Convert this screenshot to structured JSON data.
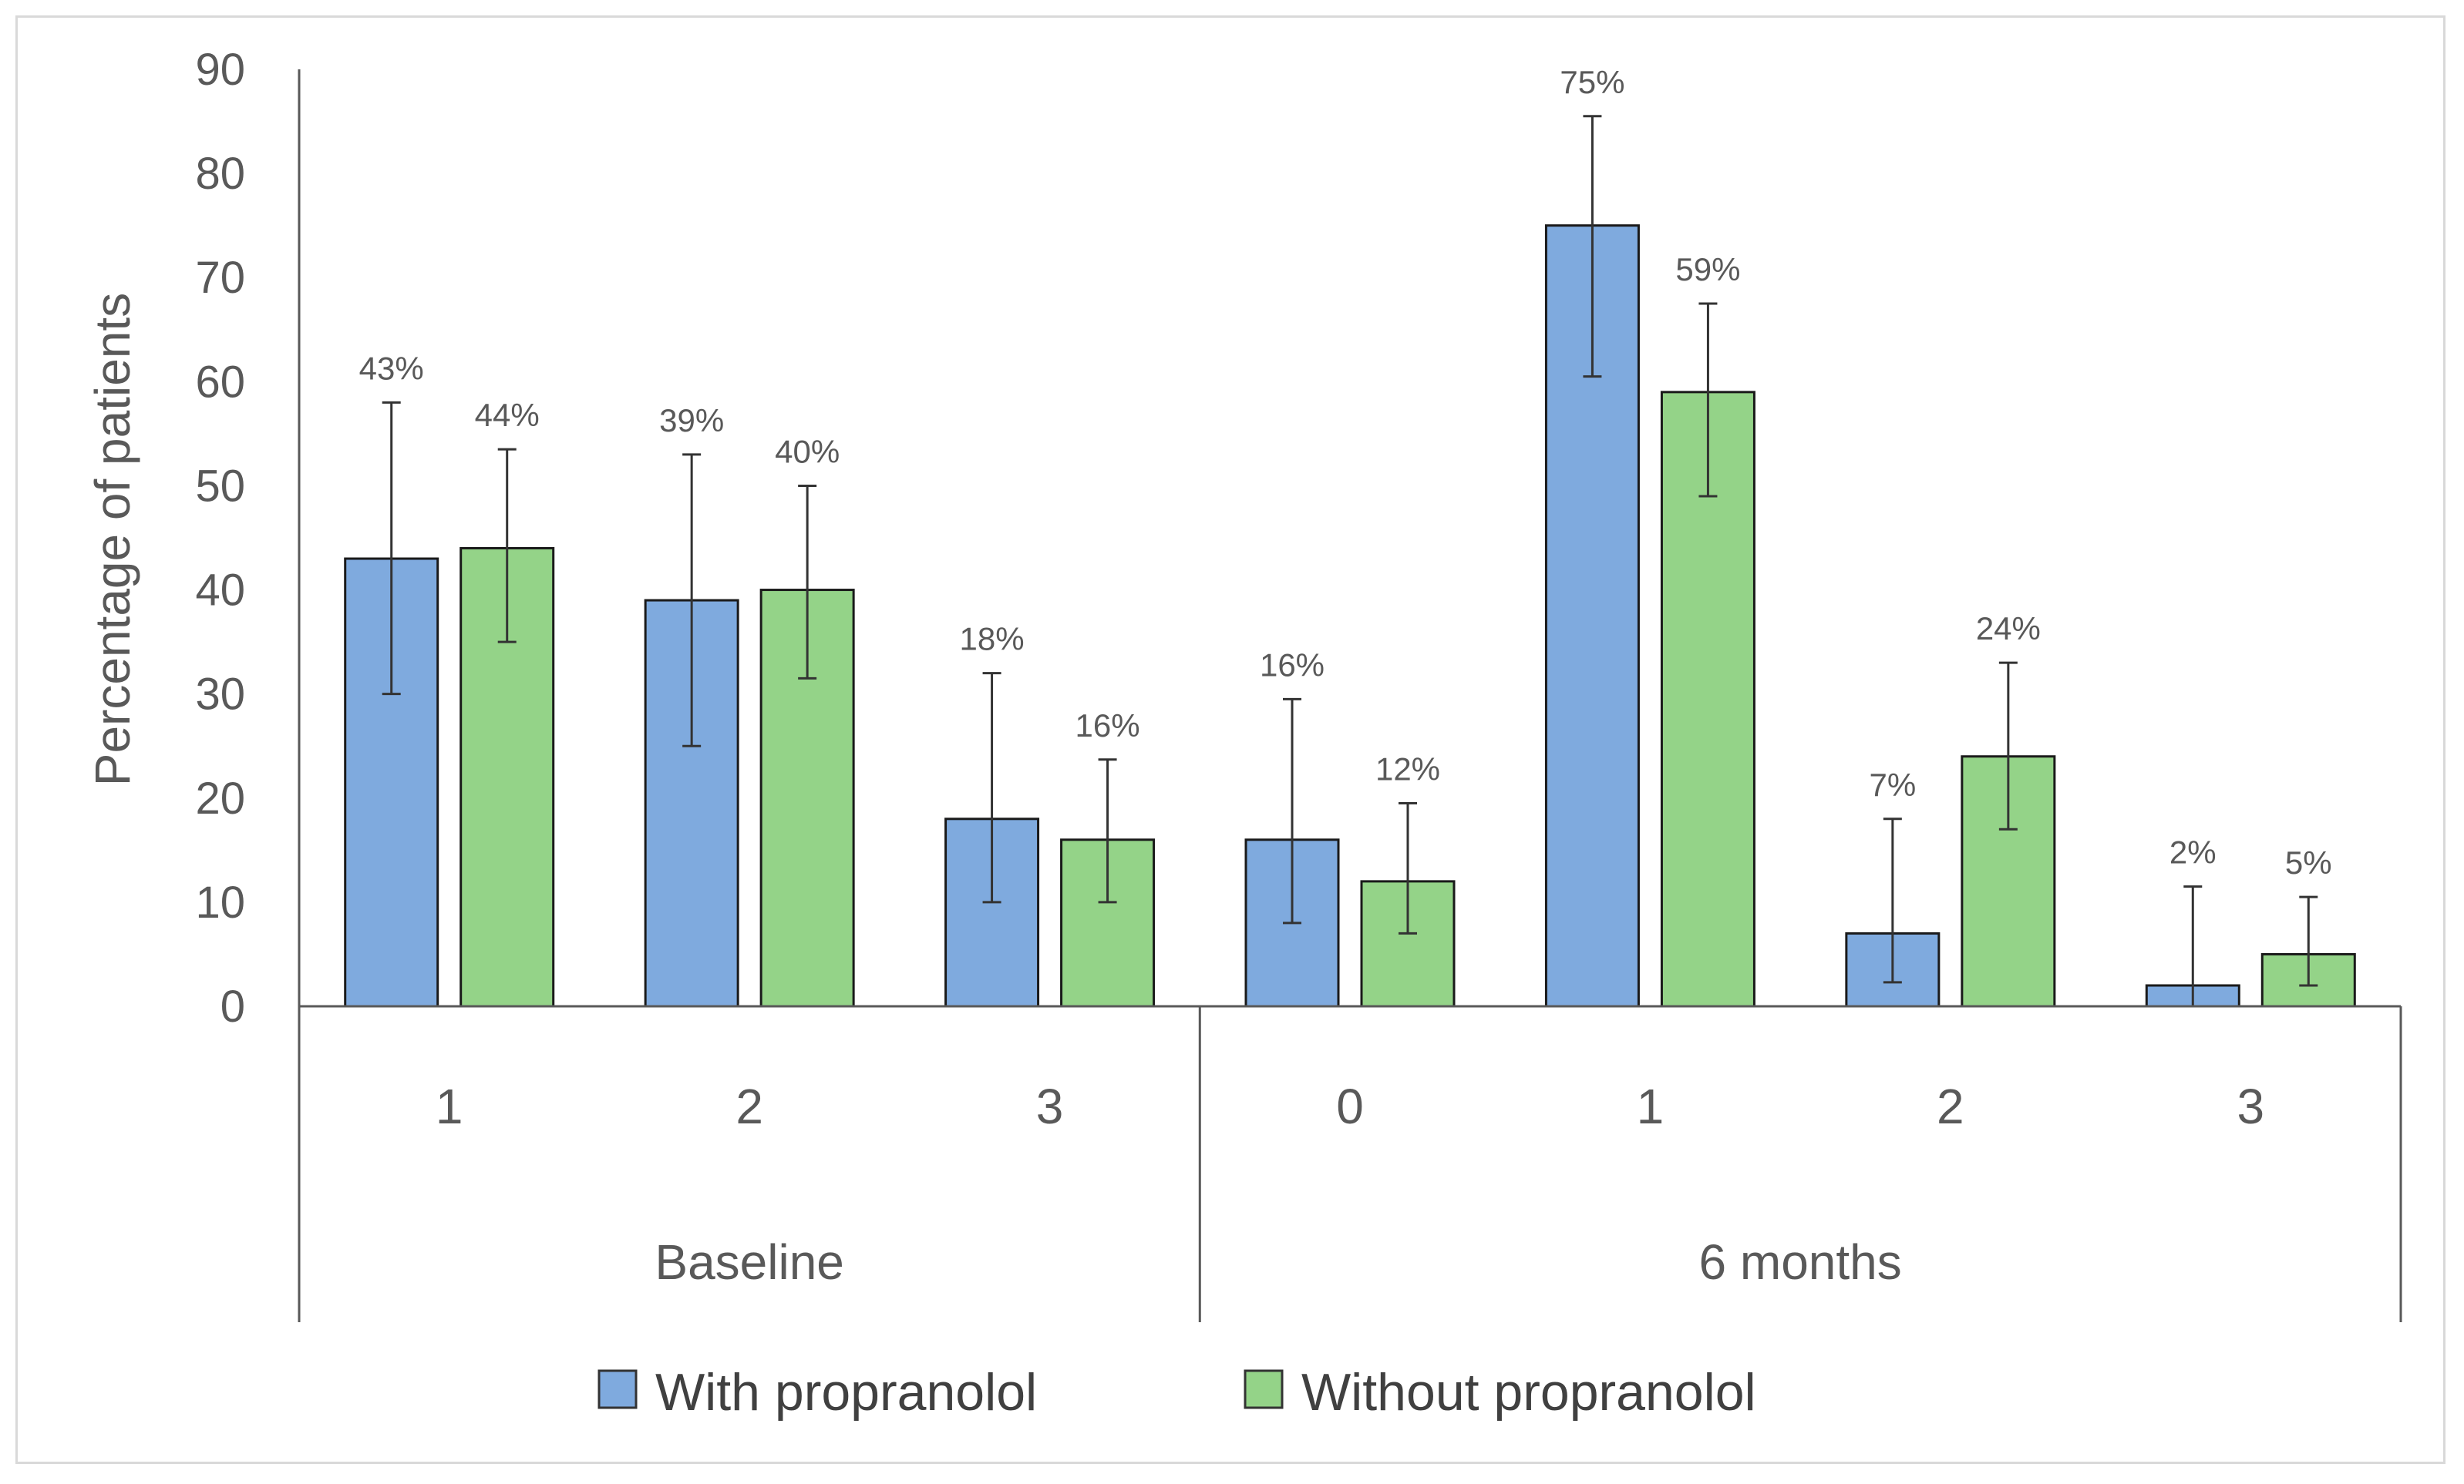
{
  "chart_data": {
    "type": "bar",
    "ylabel": "Percentage of patients",
    "ylim": [
      0,
      90
    ],
    "yticks": [
      0,
      10,
      20,
      30,
      40,
      50,
      60,
      70,
      80,
      90
    ],
    "grid": false,
    "legend_position": "bottom",
    "groups": [
      {
        "label": "Baseline",
        "categories": [
          "1",
          "2",
          "3"
        ]
      },
      {
        "label": "6 months",
        "categories": [
          "0",
          "1",
          "2",
          "3"
        ]
      }
    ],
    "categories": [
      "1",
      "2",
      "3",
      "0",
      "1",
      "2",
      "3"
    ],
    "series": [
      {
        "name": "With propranolol",
        "color": "#7faade",
        "values": [
          43,
          39,
          18,
          16,
          75,
          7,
          2
        ],
        "labels": [
          "43%",
          "39%",
          "18%",
          "16%",
          "75%",
          "7%",
          "2%"
        ],
        "error_low": [
          30,
          25,
          10,
          8,
          60.5,
          2.3,
          0
        ],
        "error_high": [
          58,
          53,
          32,
          29.5,
          85.5,
          18,
          11.5
        ]
      },
      {
        "name": "Without propranolol",
        "color": "#94d388",
        "values": [
          44,
          40,
          16,
          12,
          59,
          24,
          5
        ],
        "labels": [
          "44%",
          "40%",
          "16%",
          "12%",
          "59%",
          "24%",
          "5%"
        ],
        "error_low": [
          35,
          31.5,
          10,
          7,
          49,
          17,
          2
        ],
        "error_high": [
          53.5,
          50,
          23.7,
          19.5,
          67.5,
          33,
          10.5
        ]
      }
    ]
  }
}
